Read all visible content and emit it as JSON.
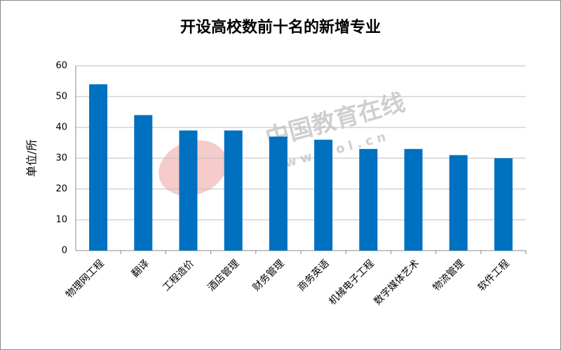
{
  "chart_data": {
    "type": "bar",
    "title": "开设高校数前十名的新增专业",
    "y_label": "单位/所",
    "categories": [
      "物理网工程",
      "翻译",
      "工程造价",
      "酒店管理",
      "财务管理",
      "商务英语",
      "机械电子工程",
      "数字媒体艺术",
      "物流管理",
      "软件工程"
    ],
    "values": [
      54,
      44,
      39,
      39,
      37,
      36,
      33,
      33,
      31,
      30
    ],
    "color": "#0070c0",
    "ylim": [
      0,
      60
    ],
    "yticks": [
      0,
      10,
      20,
      30,
      40,
      50,
      60
    ],
    "grid": true,
    "watermark": [
      "中国教育在线",
      "www.eol.cn"
    ]
  }
}
